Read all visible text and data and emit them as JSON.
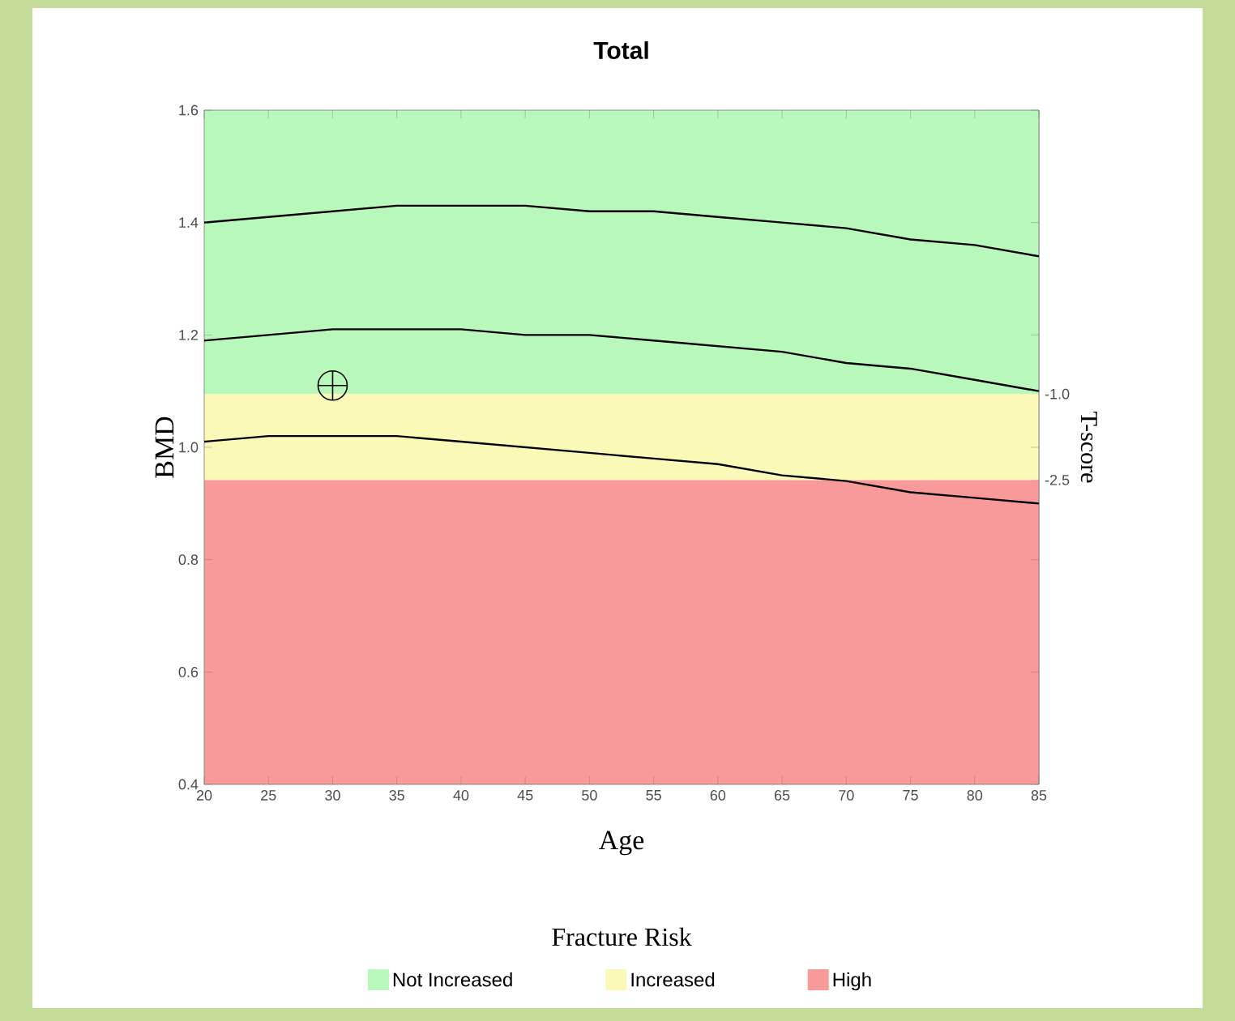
{
  "chart_data": {
    "type": "line",
    "title": "Total",
    "xlabel": "Age",
    "ylabel": "BMD",
    "y2label": "T-score",
    "legend_title": "Fracture Risk",
    "x": [
      20,
      25,
      30,
      35,
      40,
      45,
      50,
      55,
      60,
      65,
      70,
      75,
      80,
      85
    ],
    "series": [
      {
        "color": "#000000",
        "values": [
          1.4,
          1.41,
          1.42,
          1.43,
          1.43,
          1.43,
          1.42,
          1.42,
          1.41,
          1.4,
          1.39,
          1.37,
          1.36,
          1.34
        ]
      },
      {
        "color": "#000000",
        "values": [
          1.19,
          1.2,
          1.21,
          1.21,
          1.21,
          1.2,
          1.2,
          1.19,
          1.18,
          1.17,
          1.15,
          1.14,
          1.12,
          1.1
        ]
      },
      {
        "color": "#000000",
        "values": [
          1.01,
          1.02,
          1.02,
          1.02,
          1.01,
          1.0,
          0.99,
          0.98,
          0.97,
          0.95,
          0.94,
          0.92,
          0.91,
          0.9
        ]
      },
      {
        "type": "scatter",
        "x": [
          30
        ],
        "values": [
          1.11
        ],
        "color": "#000000",
        "marker": "cross"
      }
    ],
    "xlim": [
      20,
      85
    ],
    "xticks": [
      20,
      25,
      30,
      35,
      40,
      45,
      50,
      55,
      60,
      65,
      70,
      75,
      80,
      85
    ],
    "ylim": [
      0.4,
      1.6
    ],
    "yticks": [
      {
        "value": 0.4,
        "label": "0.4"
      },
      {
        "value": 0.6,
        "label": "0.6"
      },
      {
        "value": 0.8,
        "label": "0.8"
      },
      {
        "value": 1,
        "label": "1.0"
      },
      {
        "value": 1.2,
        "label": "1.2"
      },
      {
        "value": 1.4,
        "label": "1.4"
      },
      {
        "value": 1.6,
        "label": "1.6"
      }
    ],
    "y2lim": [
      -7.81,
      3.95
    ],
    "y2ticks": [
      {
        "value": -1,
        "label": "-1.0"
      },
      {
        "value": -2.5,
        "label": "-2.5"
      }
    ],
    "bands": [
      {
        "axis": "y2",
        "from": -1,
        "to": 3.95,
        "label": "Not Increased",
        "color": "#b9f8bb"
      },
      {
        "axis": "y2",
        "from": -2.5,
        "to": -1,
        "label": "Increased",
        "color": "#fbf9b7"
      },
      {
        "axis": "y2",
        "from": -7.81,
        "to": -2.5,
        "label": "High",
        "color": "#f99a9a"
      }
    ],
    "legend": "bottom"
  }
}
